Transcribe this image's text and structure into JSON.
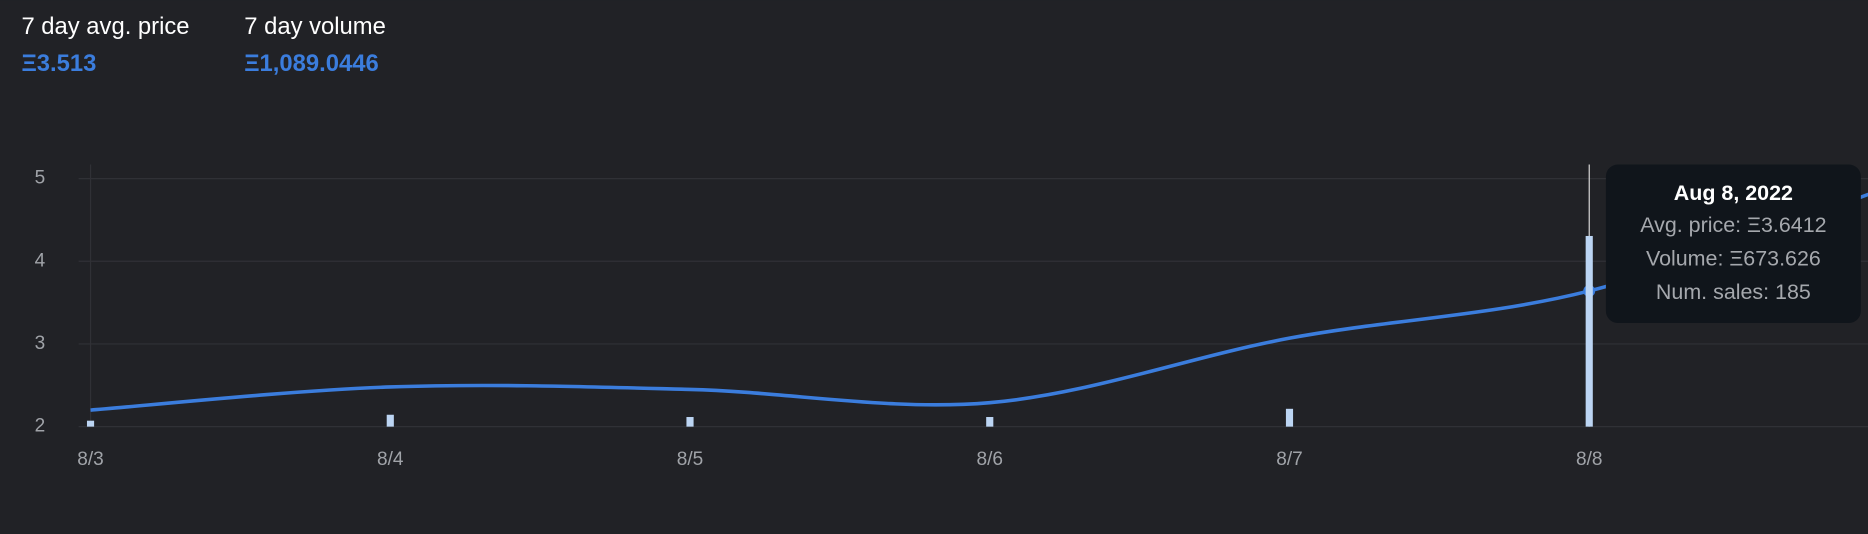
{
  "header": {
    "stats": [
      {
        "label": "7 day avg. price",
        "value": "Ξ3.513"
      },
      {
        "label": "7 day volume",
        "value": "Ξ1,089.0446"
      }
    ]
  },
  "chart_data": {
    "type": "line",
    "categories": [
      "8/3",
      "8/4",
      "8/5",
      "8/6",
      "8/7",
      "8/8",
      null
    ],
    "series": [
      {
        "name": "Avg. price",
        "color": "#3b7ddd",
        "values": [
          2.2,
          2.48,
          2.45,
          2.29,
          3.07,
          3.6412,
          4.9
        ]
      },
      {
        "name": "Volume",
        "color": "#bcd5f3",
        "type": "bar",
        "axis": "y2",
        "values": [
          21,
          42,
          34,
          34,
          63,
          673.626,
          null
        ]
      }
    ],
    "ylim": [
      2,
      5.17
    ],
    "yticks": [
      2,
      3,
      4,
      5
    ],
    "y2lim": [
      0,
      926
    ],
    "grid": true,
    "tooltip": {
      "title": "Aug 8, 2022",
      "lines": [
        "Avg. price: Ξ3.6412",
        "Volume: Ξ673.626",
        "Num. sales: 185"
      ],
      "category_index": 5
    }
  }
}
